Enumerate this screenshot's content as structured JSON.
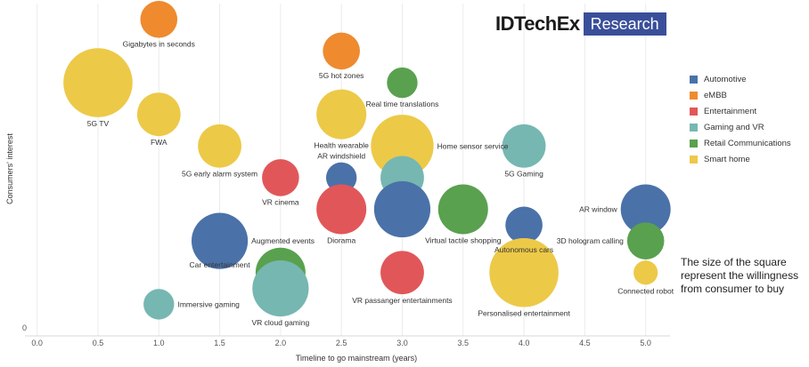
{
  "logo": {
    "brand": "IDTechEx",
    "suffix": "Research"
  },
  "note": "The size of the square represent the willingness from consumer to buy",
  "colors": {
    "Automotive": "#4a72a8",
    "eMBB": "#ef8a2e",
    "Entertainment": "#e15759",
    "Gaming and VR": "#76b7b2",
    "Retail Communications": "#59a14f",
    "Smart home": "#edc948"
  },
  "chart_data": {
    "type": "scatter",
    "title": "",
    "xlabel": "Timeline to go mainstream (years)",
    "ylabel": "Consumers' interest",
    "xlim": [
      -0.1,
      5.2
    ],
    "ylim": [
      0,
      10.5
    ],
    "x_ticks": [
      0.0,
      0.5,
      1.0,
      1.5,
      2.0,
      2.5,
      3.0,
      3.5,
      4.0,
      4.5,
      5.0
    ],
    "x_tick_labels": [
      "0.0",
      "0.5",
      "1.0",
      "1.5",
      "2.0",
      "2.5",
      "3.0",
      "3.5",
      "4.0",
      "4.5",
      "5.0"
    ],
    "y_ticks": [
      0
    ],
    "y_tick_labels": [
      "0"
    ],
    "grid": true,
    "legend_position": "right",
    "series": [
      {
        "name": "Automotive"
      },
      {
        "name": "eMBB"
      },
      {
        "name": "Entertainment"
      },
      {
        "name": "Gaming and VR"
      },
      {
        "name": "Retail Communications"
      },
      {
        "name": "Smart home"
      }
    ],
    "points": [
      {
        "label": "Gigabytes in seconds",
        "x": 1.0,
        "y": 10.0,
        "size": 3,
        "series": "eMBB"
      },
      {
        "label": "5G hot zones",
        "x": 2.5,
        "y": 9.0,
        "size": 3,
        "series": "eMBB"
      },
      {
        "label": "Real time translations",
        "x": 3.0,
        "y": 8.0,
        "size": 2,
        "series": "Retail Communications"
      },
      {
        "label": "5G TV",
        "x": 0.5,
        "y": 8.0,
        "size": 8,
        "series": "Smart home"
      },
      {
        "label": "FWA",
        "x": 1.0,
        "y": 7.0,
        "size": 4,
        "series": "Smart home"
      },
      {
        "label": "Health wearable",
        "x": 2.5,
        "y": 7.0,
        "size": 5,
        "series": "Smart home"
      },
      {
        "label": "5G early alarm system",
        "x": 1.5,
        "y": 6.0,
        "size": 4,
        "series": "Smart home"
      },
      {
        "label": "Home sensor service",
        "x": 3.0,
        "y": 6.0,
        "size": 7,
        "series": "Smart home"
      },
      {
        "label": "5G Gaming",
        "x": 4.0,
        "y": 6.0,
        "size": 4,
        "series": "Gaming and VR"
      },
      {
        "label": "VR cinema",
        "x": 2.0,
        "y": 5.0,
        "size": 3,
        "series": "Entertainment"
      },
      {
        "label": "AR windshield",
        "x": 2.5,
        "y": 5.0,
        "size": 2,
        "series": "Automotive"
      },
      {
        "label": "",
        "x": 3.0,
        "y": 5.0,
        "size": 4,
        "series": "Gaming and VR"
      },
      {
        "label": "Diorama",
        "x": 2.5,
        "y": 4.0,
        "size": 5,
        "series": "Entertainment"
      },
      {
        "label": "",
        "x": 3.0,
        "y": 4.0,
        "size": 6,
        "series": "Automotive"
      },
      {
        "label": "Virtual tactile shopping",
        "x": 3.5,
        "y": 4.0,
        "size": 5,
        "series": "Retail Communications"
      },
      {
        "label": "Autonomous cars",
        "x": 4.0,
        "y": 3.5,
        "size": 3,
        "series": "Automotive"
      },
      {
        "label": "AR window",
        "x": 5.0,
        "y": 4.0,
        "size": 5,
        "series": "Automotive"
      },
      {
        "label": "Augmented events",
        "x": 1.5,
        "y": 3.0,
        "size": 6,
        "series": "Automotive"
      },
      {
        "label": "Car entertainment",
        "x": 1.5,
        "y": 3.0,
        "size": 0,
        "series": "Automotive"
      },
      {
        "label": "3D hologram calling",
        "x": 5.0,
        "y": 3.0,
        "size": 3,
        "series": "Retail Communications"
      },
      {
        "label": "",
        "x": 2.0,
        "y": 2.0,
        "size": 5,
        "series": "Retail Communications"
      },
      {
        "label": "VR passanger entertainments",
        "x": 3.0,
        "y": 2.0,
        "size": 4,
        "series": "Entertainment"
      },
      {
        "label": "Personalised entertainment",
        "x": 4.0,
        "y": 2.0,
        "size": 8,
        "series": "Smart home"
      },
      {
        "label": "Connected robot",
        "x": 5.0,
        "y": 2.0,
        "size": 1,
        "series": "Smart home"
      },
      {
        "label": "VR cloud gaming",
        "x": 2.0,
        "y": 1.5,
        "size": 6,
        "series": "Gaming and VR"
      },
      {
        "label": "Immersive gaming",
        "x": 1.0,
        "y": 1.0,
        "size": 2,
        "series": "Gaming and VR"
      }
    ]
  }
}
